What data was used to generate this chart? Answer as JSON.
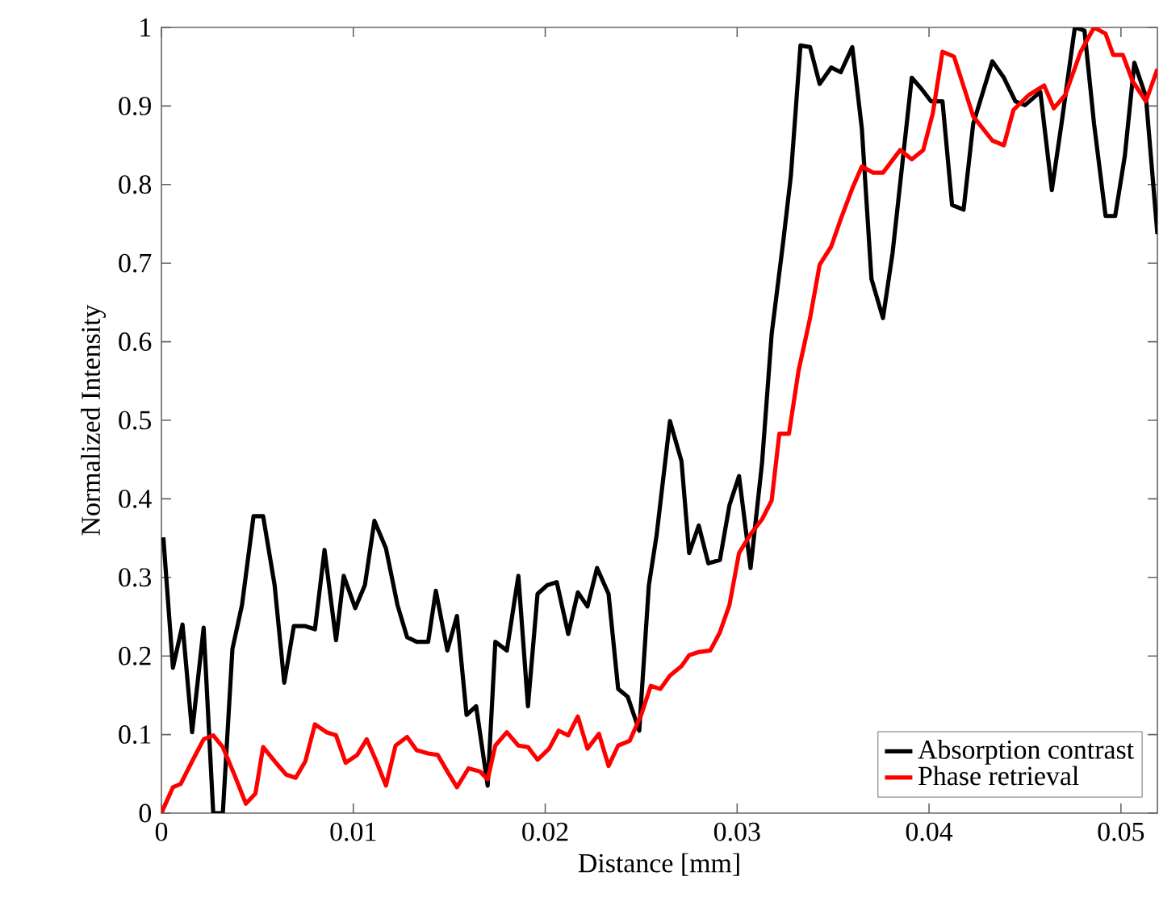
{
  "chart_data": {
    "type": "line",
    "xlabel": "Distance [mm]",
    "ylabel": "Normalized Intensity",
    "xlim": [
      0,
      0.0519
    ],
    "ylim": [
      0,
      1
    ],
    "xticks": [
      0,
      0.01,
      0.02,
      0.03,
      0.04,
      0.05
    ],
    "yticks": [
      0,
      0.1,
      0.2,
      0.3,
      0.4,
      0.5,
      0.6,
      0.7,
      0.8,
      0.9,
      1
    ],
    "legend": "bottom right",
    "grid": false,
    "line_style": "solid",
    "series": [
      {
        "name": "Absorption contrast",
        "color": "#000000",
        "x": [
          0.0001,
          0.0006,
          0.0011,
          0.0016,
          0.0022,
          0.0027,
          0.0032,
          0.0037,
          0.0042,
          0.0048,
          0.0053,
          0.0059,
          0.0064,
          0.0069,
          0.0075,
          0.008,
          0.0085,
          0.0091,
          0.0095,
          0.0101,
          0.0106,
          0.0111,
          0.0117,
          0.0123,
          0.0128,
          0.0133,
          0.0139,
          0.0143,
          0.0149,
          0.0154,
          0.0159,
          0.0164,
          0.017,
          0.0174,
          0.018,
          0.0186,
          0.0191,
          0.0196,
          0.0201,
          0.0206,
          0.0212,
          0.0217,
          0.0222,
          0.0227,
          0.0233,
          0.0238,
          0.0243,
          0.0249,
          0.0254,
          0.0258,
          0.0265,
          0.0271,
          0.0275,
          0.028,
          0.0285,
          0.0291,
          0.0296,
          0.0301,
          0.0307,
          0.0313,
          0.0318,
          0.0324,
          0.0328,
          0.0333,
          0.0338,
          0.0343,
          0.0349,
          0.0354,
          0.036,
          0.0365,
          0.037,
          0.0376,
          0.0381,
          0.0391,
          0.0396,
          0.0401,
          0.0407,
          0.0412,
          0.0418,
          0.0423,
          0.0433,
          0.0439,
          0.0445,
          0.045,
          0.0458,
          0.0464,
          0.0469,
          0.0476,
          0.0481,
          0.0486,
          0.0492,
          0.0497,
          0.0502,
          0.0507,
          0.0513,
          0.0519
        ],
        "values": [
          0.351,
          0.185,
          0.24,
          0.103,
          0.236,
          0,
          0,
          0.209,
          0.265,
          0.378,
          0.378,
          0.29,
          0.166,
          0.238,
          0.238,
          0.234,
          0.335,
          0.22,
          0.302,
          0.261,
          0.29,
          0.372,
          0.337,
          0.265,
          0.224,
          0.218,
          0.218,
          0.283,
          0.207,
          0.251,
          0.125,
          0.136,
          0.035,
          0.218,
          0.207,
          0.302,
          0.136,
          0.279,
          0.29,
          0.294,
          0.228,
          0.281,
          0.263,
          0.312,
          0.279,
          0.158,
          0.148,
          0.105,
          0.29,
          0.353,
          0.499,
          0.448,
          0.331,
          0.366,
          0.318,
          0.322,
          0.392,
          0.429,
          0.312,
          0.446,
          0.61,
          0.727,
          0.811,
          0.977,
          0.975,
          0.928,
          0.949,
          0.943,
          0.975,
          0.871,
          0.68,
          0.63,
          0.713,
          0.936,
          0.922,
          0.906,
          0.906,
          0.774,
          0.768,
          0.877,
          0.957,
          0.936,
          0.906,
          0.901,
          0.918,
          0.793,
          0.877,
          1.0,
          0.996,
          0.877,
          0.76,
          0.76,
          0.836,
          0.955,
          0.912,
          0.737
        ]
      },
      {
        "name": "Phase retrieval",
        "color": "#ff0000",
        "x": [
          0,
          0.0006,
          0.001,
          0.0016,
          0.0022,
          0.0027,
          0.0032,
          0.0038,
          0.0044,
          0.0049,
          0.0053,
          0.0059,
          0.0065,
          0.007,
          0.0075,
          0.008,
          0.0086,
          0.0091,
          0.0096,
          0.0102,
          0.0107,
          0.0112,
          0.0117,
          0.0122,
          0.0128,
          0.0133,
          0.0139,
          0.0144,
          0.0149,
          0.0154,
          0.016,
          0.0166,
          0.017,
          0.0174,
          0.018,
          0.0186,
          0.0191,
          0.0196,
          0.0202,
          0.0207,
          0.0212,
          0.0217,
          0.0222,
          0.0228,
          0.0233,
          0.0238,
          0.0244,
          0.025,
          0.0255,
          0.026,
          0.0265,
          0.0271,
          0.0275,
          0.028,
          0.0286,
          0.0291,
          0.0296,
          0.0301,
          0.0307,
          0.0313,
          0.0318,
          0.0322,
          0.0327,
          0.0332,
          0.0338,
          0.0343,
          0.0349,
          0.0354,
          0.036,
          0.0365,
          0.0371,
          0.0376,
          0.0385,
          0.0391,
          0.0397,
          0.0402,
          0.0407,
          0.0413,
          0.0423,
          0.0433,
          0.0439,
          0.0444,
          0.0452,
          0.046,
          0.0465,
          0.0471,
          0.0479,
          0.0486,
          0.0492,
          0.0496,
          0.0501,
          0.0506,
          0.0513,
          0.0519
        ],
        "values": [
          0,
          0.033,
          0.037,
          0.066,
          0.094,
          0.099,
          0.084,
          0.049,
          0.012,
          0.025,
          0.084,
          0.066,
          0.049,
          0.045,
          0.066,
          0.113,
          0.103,
          0.099,
          0.064,
          0.074,
          0.094,
          0.066,
          0.035,
          0.086,
          0.097,
          0.08,
          0.076,
          0.074,
          0.053,
          0.033,
          0.057,
          0.053,
          0.043,
          0.086,
          0.103,
          0.086,
          0.084,
          0.068,
          0.082,
          0.105,
          0.099,
          0.123,
          0.082,
          0.101,
          0.06,
          0.086,
          0.092,
          0.125,
          0.162,
          0.158,
          0.175,
          0.187,
          0.201,
          0.205,
          0.207,
          0.23,
          0.265,
          0.331,
          0.355,
          0.374,
          0.398,
          0.483,
          0.483,
          0.563,
          0.63,
          0.698,
          0.721,
          0.756,
          0.795,
          0.823,
          0.815,
          0.815,
          0.844,
          0.832,
          0.844,
          0.891,
          0.969,
          0.963,
          0.887,
          0.856,
          0.85,
          0.895,
          0.914,
          0.926,
          0.897,
          0.914,
          0.969,
          1.0,
          0.992,
          0.965,
          0.965,
          0.932,
          0.906,
          0.947
        ]
      }
    ]
  }
}
